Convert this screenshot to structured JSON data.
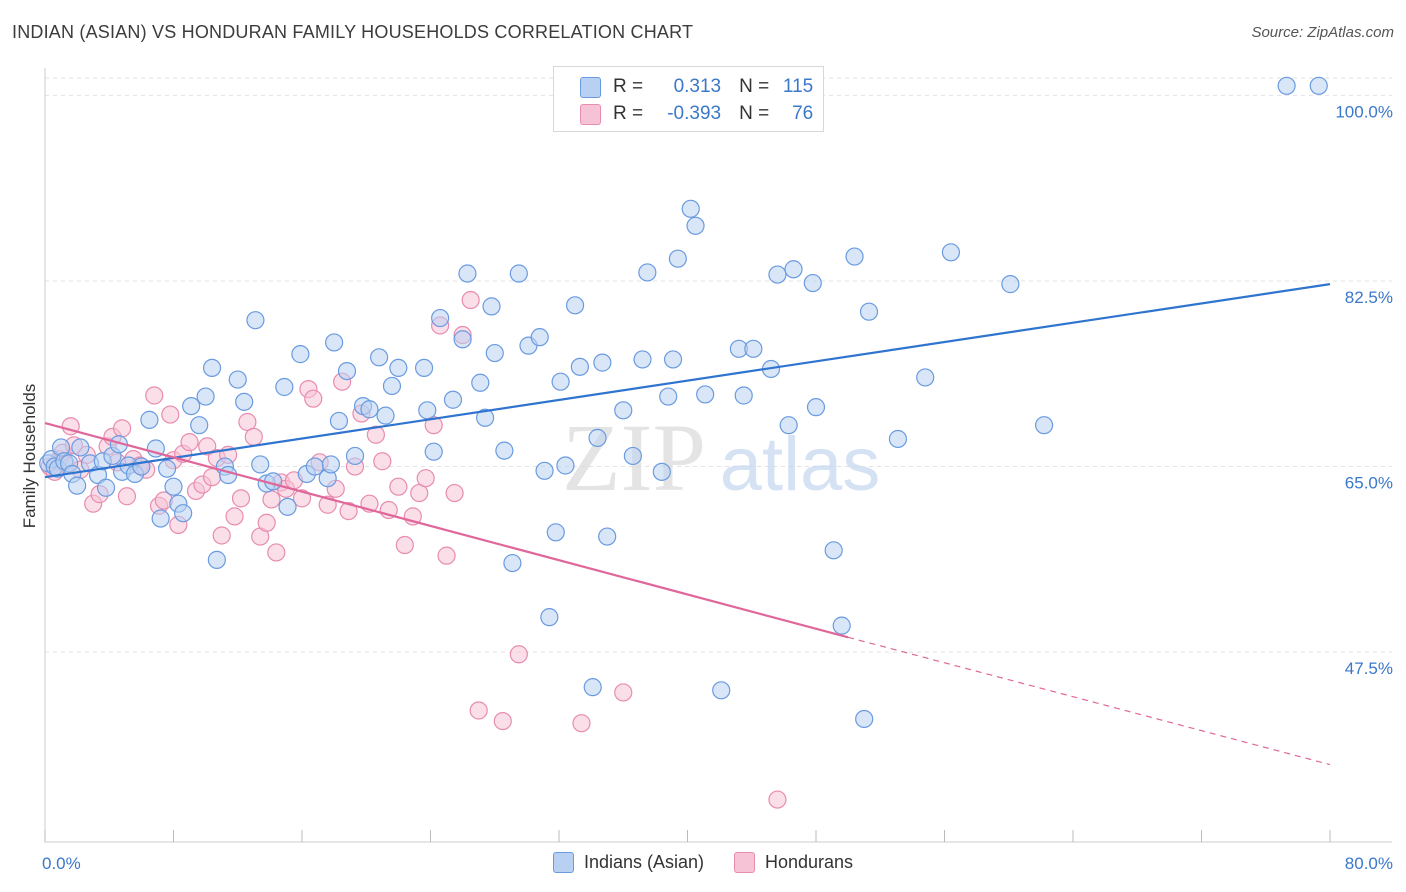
{
  "header": {
    "title": "INDIAN (ASIAN) VS HONDURAN FAMILY HOUSEHOLDS CORRELATION CHART",
    "source": "Source: ZipAtlas.com"
  },
  "watermark": {
    "zip": "ZIP",
    "atlas": "atlas"
  },
  "legend": {
    "rows": [
      {
        "r_label": "R =",
        "r_value": "0.313",
        "n_label": "N =",
        "n_value": "115"
      },
      {
        "r_label": "R =",
        "r_value": "-0.393",
        "n_label": "N =",
        "n_value": "76"
      }
    ]
  },
  "bottom_legend": {
    "series1": "Indians (Asian)",
    "series2": "Hondurans"
  },
  "colors": {
    "blue": "#2f74cf",
    "blue_fill": "#b8d1f3",
    "blue_stroke": "#6a9be0",
    "pink": "#e0679a",
    "pink_fill": "#f6c2d6",
    "pink_stroke": "#e88cb0",
    "axis_text": "#3a78c9",
    "grid": "#e2e2e2"
  },
  "chart_data": {
    "type": "scatter",
    "title": "INDIAN (ASIAN) VS HONDURAN FAMILY HOUSEHOLDS CORRELATION CHART",
    "xlabel": "",
    "ylabel": "Family Households",
    "xlim": [
      0,
      80
    ],
    "ylim": [
      29.6,
      102.2
    ],
    "x_tick_labels": [
      "0.0%",
      "80.0%"
    ],
    "y_ticks": [
      {
        "value": 47.5,
        "label": "47.5%"
      },
      {
        "value": 65.0,
        "label": "65.0%"
      },
      {
        "value": 82.5,
        "label": "82.5%"
      },
      {
        "value": 100.0,
        "label": "100.0%"
      }
    ],
    "series": [
      {
        "name": "Indians (Asian)",
        "R": 0.313,
        "N": 115,
        "trend": {
          "x": [
            0,
            80
          ],
          "y": [
            64.0,
            82.2
          ],
          "dashed_to": null
        },
        "points": [
          [
            0.2,
            65.3
          ],
          [
            0.4,
            65.7
          ],
          [
            0.6,
            65.0
          ],
          [
            0.8,
            64.8
          ],
          [
            1.0,
            66.8
          ],
          [
            1.2,
            65.5
          ],
          [
            1.5,
            65.3
          ],
          [
            1.7,
            64.3
          ],
          [
            2.0,
            63.2
          ],
          [
            2.2,
            66.8
          ],
          [
            2.8,
            65.3
          ],
          [
            3.3,
            64.2
          ],
          [
            3.6,
            65.5
          ],
          [
            3.8,
            63.0
          ],
          [
            4.2,
            66.0
          ],
          [
            4.6,
            67.1
          ],
          [
            4.8,
            64.5
          ],
          [
            5.2,
            65.1
          ],
          [
            5.6,
            64.3
          ],
          [
            6.0,
            65.0
          ],
          [
            6.5,
            69.4
          ],
          [
            6.9,
            66.7
          ],
          [
            7.2,
            60.1
          ],
          [
            7.6,
            64.8
          ],
          [
            8.0,
            63.1
          ],
          [
            8.3,
            61.5
          ],
          [
            8.6,
            60.6
          ],
          [
            9.1,
            70.7
          ],
          [
            9.6,
            68.9
          ],
          [
            10.0,
            71.6
          ],
          [
            10.4,
            74.3
          ],
          [
            10.7,
            56.2
          ],
          [
            11.2,
            65.0
          ],
          [
            11.4,
            64.2
          ],
          [
            12.0,
            73.2
          ],
          [
            12.4,
            71.1
          ],
          [
            13.1,
            78.8
          ],
          [
            13.4,
            65.2
          ],
          [
            13.8,
            63.4
          ],
          [
            14.2,
            63.6
          ],
          [
            14.9,
            72.5
          ],
          [
            15.1,
            61.2
          ],
          [
            15.9,
            75.6
          ],
          [
            16.3,
            64.3
          ],
          [
            16.8,
            65.0
          ],
          [
            17.6,
            63.9
          ],
          [
            17.8,
            65.2
          ],
          [
            18.0,
            76.7
          ],
          [
            18.3,
            69.3
          ],
          [
            18.8,
            74.0
          ],
          [
            19.3,
            66.0
          ],
          [
            19.8,
            70.7
          ],
          [
            20.2,
            70.4
          ],
          [
            20.8,
            75.3
          ],
          [
            21.2,
            69.8
          ],
          [
            21.6,
            72.6
          ],
          [
            22.0,
            74.3
          ],
          [
            23.6,
            74.3
          ],
          [
            23.8,
            70.3
          ],
          [
            24.2,
            66.4
          ],
          [
            24.6,
            79.0
          ],
          [
            25.4,
            71.3
          ],
          [
            26.0,
            77.0
          ],
          [
            26.3,
            83.2
          ],
          [
            27.1,
            72.9
          ],
          [
            27.4,
            69.6
          ],
          [
            27.8,
            80.1
          ],
          [
            28.0,
            75.7
          ],
          [
            28.6,
            66.5
          ],
          [
            29.1,
            55.9
          ],
          [
            29.5,
            83.2
          ],
          [
            30.1,
            76.4
          ],
          [
            30.8,
            77.2
          ],
          [
            31.1,
            64.6
          ],
          [
            31.4,
            50.8
          ],
          [
            31.8,
            58.8
          ],
          [
            32.1,
            73.0
          ],
          [
            32.4,
            65.1
          ],
          [
            33.0,
            80.2
          ],
          [
            33.3,
            74.4
          ],
          [
            34.1,
            44.2
          ],
          [
            34.4,
            67.7
          ],
          [
            34.7,
            74.8
          ],
          [
            35.0,
            58.4
          ],
          [
            36.0,
            70.3
          ],
          [
            36.6,
            66.0
          ],
          [
            37.2,
            75.1
          ],
          [
            37.5,
            83.3
          ],
          [
            38.4,
            64.5
          ],
          [
            38.8,
            71.6
          ],
          [
            39.1,
            75.1
          ],
          [
            39.4,
            84.6
          ],
          [
            40.2,
            89.3
          ],
          [
            40.5,
            87.7
          ],
          [
            41.1,
            71.8
          ],
          [
            42.1,
            43.9
          ],
          [
            43.2,
            76.1
          ],
          [
            43.5,
            71.7
          ],
          [
            44.1,
            76.1
          ],
          [
            45.2,
            74.2
          ],
          [
            45.6,
            83.1
          ],
          [
            46.3,
            68.9
          ],
          [
            46.6,
            83.6
          ],
          [
            47.8,
            82.3
          ],
          [
            48.0,
            70.6
          ],
          [
            49.1,
            57.1
          ],
          [
            49.6,
            50.0
          ],
          [
            50.4,
            84.8
          ],
          [
            51.0,
            41.2
          ],
          [
            51.3,
            79.6
          ],
          [
            53.1,
            67.6
          ],
          [
            54.8,
            73.4
          ],
          [
            56.4,
            85.2
          ],
          [
            60.1,
            82.2
          ],
          [
            62.2,
            68.9
          ],
          [
            77.3,
            100.9
          ],
          [
            79.3,
            100.9
          ]
        ]
      },
      {
        "name": "Hondurans",
        "R": -0.393,
        "N": 76,
        "trend": {
          "x": [
            0,
            50
          ],
          "y": [
            69.1,
            48.9
          ],
          "dashed_to": {
            "x": 80,
            "y": 36.9
          }
        },
        "points": [
          [
            0.3,
            65.0
          ],
          [
            0.6,
            64.5
          ],
          [
            0.9,
            65.7
          ],
          [
            1.1,
            66.3
          ],
          [
            1.3,
            65.2
          ],
          [
            1.6,
            68.8
          ],
          [
            1.8,
            67.0
          ],
          [
            2.2,
            64.7
          ],
          [
            2.6,
            66.1
          ],
          [
            3.0,
            61.5
          ],
          [
            3.4,
            62.4
          ],
          [
            3.9,
            66.9
          ],
          [
            4.2,
            67.8
          ],
          [
            4.5,
            65.4
          ],
          [
            4.8,
            68.6
          ],
          [
            5.1,
            62.2
          ],
          [
            5.5,
            65.7
          ],
          [
            5.9,
            65.1
          ],
          [
            6.3,
            64.7
          ],
          [
            6.8,
            71.7
          ],
          [
            7.1,
            61.3
          ],
          [
            7.4,
            61.8
          ],
          [
            7.8,
            69.9
          ],
          [
            8.0,
            65.6
          ],
          [
            8.3,
            59.5
          ],
          [
            8.6,
            66.2
          ],
          [
            9.0,
            67.3
          ],
          [
            9.4,
            62.7
          ],
          [
            9.8,
            63.3
          ],
          [
            10.1,
            66.9
          ],
          [
            10.4,
            64.0
          ],
          [
            10.7,
            65.8
          ],
          [
            11.0,
            58.5
          ],
          [
            11.4,
            66.1
          ],
          [
            11.8,
            60.3
          ],
          [
            12.2,
            62.0
          ],
          [
            12.6,
            69.2
          ],
          [
            13.0,
            67.8
          ],
          [
            13.4,
            58.4
          ],
          [
            13.8,
            59.7
          ],
          [
            14.1,
            61.9
          ],
          [
            14.4,
            56.9
          ],
          [
            14.7,
            63.5
          ],
          [
            15.0,
            62.9
          ],
          [
            15.5,
            63.7
          ],
          [
            16.0,
            62.0
          ],
          [
            16.4,
            72.3
          ],
          [
            16.7,
            71.4
          ],
          [
            17.1,
            65.4
          ],
          [
            17.6,
            61.4
          ],
          [
            18.1,
            62.9
          ],
          [
            18.5,
            73.0
          ],
          [
            18.9,
            60.8
          ],
          [
            19.3,
            65.0
          ],
          [
            19.7,
            70.0
          ],
          [
            20.2,
            61.5
          ],
          [
            20.6,
            68.0
          ],
          [
            21.0,
            65.5
          ],
          [
            21.4,
            60.9
          ],
          [
            22.0,
            63.1
          ],
          [
            22.4,
            57.6
          ],
          [
            22.9,
            60.3
          ],
          [
            23.3,
            62.5
          ],
          [
            23.7,
            63.9
          ],
          [
            24.2,
            68.9
          ],
          [
            24.6,
            78.3
          ],
          [
            25.0,
            56.6
          ],
          [
            25.5,
            62.5
          ],
          [
            26.0,
            77.4
          ],
          [
            26.5,
            80.7
          ],
          [
            27.0,
            42.0
          ],
          [
            28.5,
            41.0
          ],
          [
            29.5,
            47.3
          ],
          [
            33.4,
            40.8
          ],
          [
            36.0,
            43.7
          ],
          [
            45.6,
            33.6
          ]
        ]
      }
    ]
  }
}
